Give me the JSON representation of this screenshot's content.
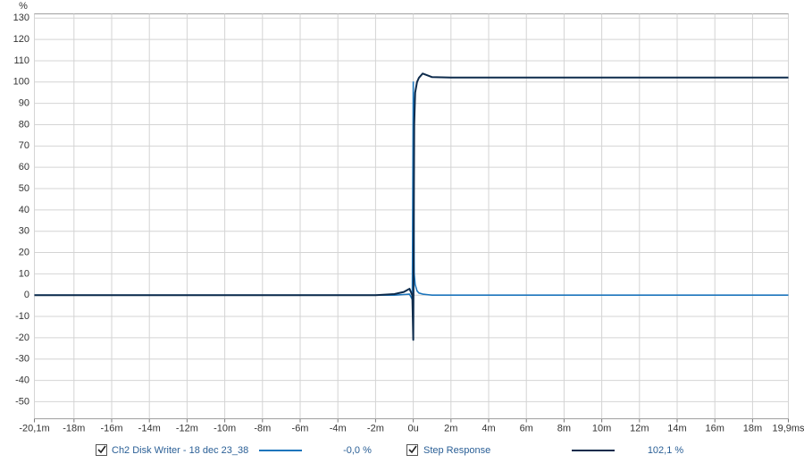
{
  "chart_data": {
    "type": "line",
    "y_label": "%",
    "x": [
      -20.1,
      -2,
      -1,
      -0.5,
      -0.2,
      -0.05,
      0,
      0.05,
      0.1,
      0.2,
      0.3,
      0.5,
      0.8,
      1,
      2,
      19.9
    ],
    "series": [
      {
        "name": "Ch2 Disk Writer - 18 dec 23_38",
        "color": "#1c75bc",
        "readout": "-0,0 %",
        "values": [
          0,
          0,
          0,
          0.3,
          0.5,
          -2,
          100,
          10,
          5,
          2,
          1,
          0.5,
          0.2,
          0,
          0,
          0
        ]
      },
      {
        "name": "Step Response",
        "color": "#0d2b4c",
        "readout": "102,1 %",
        "values": [
          0,
          0,
          0.5,
          1.5,
          3,
          0,
          -21,
          80,
          95,
          100,
          102,
          104,
          103,
          102.3,
          102.1,
          102.1
        ]
      }
    ],
    "xlim": [
      -20.1,
      19.9
    ],
    "xticks": [
      {
        "value": -20.1,
        "label": "-20,1m"
      },
      {
        "value": -18,
        "label": "-18m"
      },
      {
        "value": -16,
        "label": "-16m"
      },
      {
        "value": -14,
        "label": "-14m"
      },
      {
        "value": -12,
        "label": "-12m"
      },
      {
        "value": -10,
        "label": "-10m"
      },
      {
        "value": -8,
        "label": "-8m"
      },
      {
        "value": -6,
        "label": "-6m"
      },
      {
        "value": -4,
        "label": "-4m"
      },
      {
        "value": -2,
        "label": "-2m"
      },
      {
        "value": 0,
        "label": "0u"
      },
      {
        "value": 2,
        "label": "2m"
      },
      {
        "value": 4,
        "label": "4m"
      },
      {
        "value": 6,
        "label": "6m"
      },
      {
        "value": 8,
        "label": "8m"
      },
      {
        "value": 10,
        "label": "10m"
      },
      {
        "value": 12,
        "label": "12m"
      },
      {
        "value": 14,
        "label": "14m"
      },
      {
        "value": 16,
        "label": "16m"
      },
      {
        "value": 18,
        "label": "18m"
      },
      {
        "value": 19.9,
        "label": "19,9ms"
      }
    ],
    "ylim": [
      -58,
      132
    ],
    "yticks": [
      130,
      120,
      110,
      100,
      90,
      80,
      70,
      60,
      50,
      40,
      30,
      20,
      10,
      0,
      -10,
      -20,
      -30,
      -40,
      -50
    ],
    "grid": true
  }
}
